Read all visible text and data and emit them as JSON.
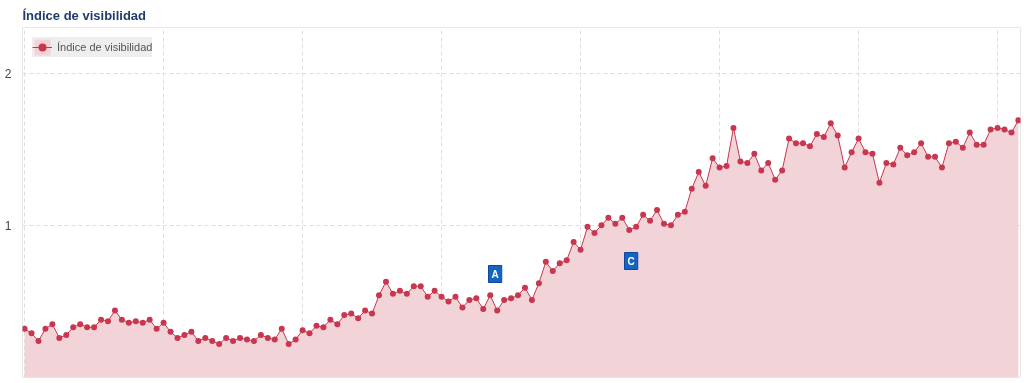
{
  "chart_data": {
    "type": "area",
    "title": "Índice de visibilidad",
    "categories": [
      null,
      null,
      null,
      null,
      null,
      null,
      null,
      null,
      null,
      null,
      null,
      null,
      null,
      null,
      null,
      null,
      null,
      null,
      null,
      null,
      null,
      null,
      null,
      null,
      null,
      null,
      null,
      null,
      null,
      null,
      null,
      null,
      null,
      null,
      null,
      null,
      null,
      null,
      null,
      null,
      null,
      null,
      null,
      null,
      null,
      null,
      null,
      null,
      null,
      null,
      null,
      null,
      null,
      null,
      null,
      null,
      null,
      null,
      null,
      null,
      null,
      null,
      null,
      null,
      null,
      null,
      null,
      null,
      null,
      null,
      null,
      null,
      null,
      null,
      null,
      null,
      null,
      null,
      null,
      null,
      null,
      null,
      null,
      null,
      null,
      null,
      null,
      null,
      null,
      null,
      null,
      null,
      null,
      null,
      null,
      null,
      null,
      null,
      null,
      null,
      null,
      null,
      null,
      null,
      null,
      null,
      null,
      null,
      null,
      null,
      null,
      null,
      null,
      null,
      null,
      null,
      null,
      null,
      null,
      null,
      null,
      null,
      null,
      null,
      null,
      null,
      null,
      null,
      null,
      null,
      null,
      null,
      null,
      null,
      null,
      null,
      null,
      null,
      null,
      null,
      null,
      null,
      null,
      null
    ],
    "series": [
      {
        "name": "Índice de visibilidad",
        "color": "#c8374f",
        "values": [
          0.32,
          0.29,
          0.24,
          0.32,
          0.35,
          0.26,
          0.28,
          0.33,
          0.35,
          0.33,
          0.33,
          0.38,
          0.37,
          0.44,
          0.38,
          0.36,
          0.37,
          0.36,
          0.38,
          0.32,
          0.36,
          0.3,
          0.26,
          0.28,
          0.3,
          0.24,
          0.26,
          0.24,
          0.22,
          0.26,
          0.24,
          0.26,
          0.25,
          0.24,
          0.28,
          0.26,
          0.25,
          0.32,
          0.22,
          0.25,
          0.31,
          0.29,
          0.34,
          0.33,
          0.38,
          0.35,
          0.41,
          0.42,
          0.39,
          0.44,
          0.42,
          0.54,
          0.63,
          0.55,
          0.57,
          0.55,
          0.6,
          0.6,
          0.53,
          0.57,
          0.53,
          0.5,
          0.53,
          0.46,
          0.51,
          0.52,
          0.45,
          0.54,
          0.44,
          0.51,
          0.52,
          0.54,
          0.59,
          0.51,
          0.62,
          0.76,
          0.7,
          0.75,
          0.77,
          0.89,
          0.84,
          0.99,
          0.95,
          1.0,
          1.05,
          1.01,
          1.05,
          0.97,
          0.99,
          1.07,
          1.03,
          1.1,
          1.01,
          1.0,
          1.07,
          1.09,
          1.24,
          1.35,
          1.26,
          1.44,
          1.38,
          1.39,
          1.64,
          1.42,
          1.41,
          1.47,
          1.36,
          1.41,
          1.3,
          1.36,
          1.57,
          1.54,
          1.54,
          1.52,
          1.6,
          1.58,
          1.67,
          1.59,
          1.38,
          1.48,
          1.57,
          1.48,
          1.47,
          1.28,
          1.41,
          1.4,
          1.51,
          1.46,
          1.48,
          1.54,
          1.45,
          1.45,
          1.38,
          1.54,
          1.55,
          1.51,
          1.61,
          1.53,
          1.53,
          1.63,
          1.64,
          1.63,
          1.61,
          1.69
        ]
      }
    ],
    "ylim": [
      0,
      2.3
    ],
    "yticks": [
      1,
      2
    ],
    "grid": true,
    "legend": "top left",
    "marker": "circle",
    "annotations": [
      "A",
      "C"
    ]
  }
}
